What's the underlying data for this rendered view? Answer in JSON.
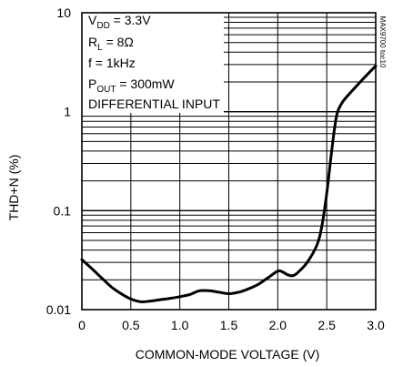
{
  "chart_data": {
    "type": "line",
    "title": "",
    "xlabel": "COMMON-MODE VOLTAGE (V)",
    "ylabel": "THD+N (%)",
    "xlim": [
      0,
      3.0
    ],
    "ylim": [
      0.01,
      10
    ],
    "yscale": "log",
    "grid": true,
    "x_ticks": [
      0,
      0.5,
      1.0,
      1.5,
      2.0,
      2.5,
      3.0
    ],
    "x_tick_labels": [
      "0",
      "0.5",
      "1.0",
      "1.5",
      "2.0",
      "2.5",
      "3.0"
    ],
    "y_ticks": [
      0.01,
      0.1,
      1,
      10
    ],
    "y_tick_labels": [
      "0.01",
      "0.1",
      "1",
      "10"
    ],
    "series": [
      {
        "x": [
          0,
          0.1,
          0.2,
          0.3,
          0.4,
          0.5,
          0.6,
          0.7,
          0.8,
          0.9,
          1.0,
          1.1,
          1.2,
          1.3,
          1.4,
          1.5,
          1.6,
          1.7,
          1.8,
          1.9,
          2.0,
          2.05,
          2.1,
          2.15,
          2.2,
          2.3,
          2.4,
          2.45,
          2.5,
          2.55,
          2.6,
          2.65,
          2.7,
          2.8,
          2.9,
          3.0
        ],
        "values": [
          0.032,
          0.026,
          0.021,
          0.017,
          0.0145,
          0.0128,
          0.012,
          0.0122,
          0.0126,
          0.013,
          0.0135,
          0.0142,
          0.0155,
          0.0155,
          0.015,
          0.0145,
          0.015,
          0.0162,
          0.018,
          0.021,
          0.0245,
          0.024,
          0.0225,
          0.022,
          0.0235,
          0.03,
          0.045,
          0.07,
          0.15,
          0.4,
          0.9,
          1.2,
          1.4,
          1.8,
          2.3,
          2.9
        ]
      }
    ],
    "annotations": [
      "DIFFERENTIAL INPUT",
      "MAX9700 toc10"
    ]
  },
  "legend": {
    "vdd": {
      "base": "V",
      "sub": "DD",
      "rest": " = 3.3V"
    },
    "rl": {
      "base": "R",
      "sub": "L",
      "rest": " = 8Ω"
    },
    "freq": "f = 1kHz",
    "pout": {
      "base": "P",
      "sub": "OUT",
      "rest": " = 300mW"
    }
  }
}
